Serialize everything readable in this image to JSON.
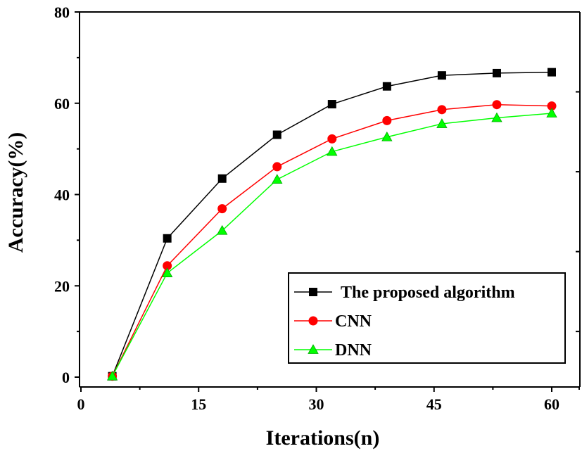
{
  "chart_data": {
    "type": "line",
    "title": "",
    "xlabel": "Iterations(n)",
    "ylabel": "Accuracy(%)",
    "xlim": [
      0,
      64
    ],
    "ylim": [
      0,
      80
    ],
    "xticks": [
      0,
      15,
      30,
      45,
      60
    ],
    "yticks": [
      0,
      20,
      40,
      60,
      80
    ],
    "xtick_labels": [
      "0",
      "15",
      "30",
      "45",
      "60"
    ],
    "ytick_labels": [
      "0",
      "20",
      "40",
      "60",
      "80"
    ],
    "grid": false,
    "legend_position": "bottom-right",
    "x": [
      4,
      11,
      18,
      25,
      32,
      39,
      46,
      53,
      60
    ],
    "series": [
      {
        "name": "The proposed algorithm",
        "color": "#000000",
        "marker": "square",
        "values": [
          0.2,
          30.4,
          43.5,
          53.1,
          59.8,
          63.7,
          66.1,
          66.6,
          66.8
        ]
      },
      {
        "name": "CNN",
        "color": "#ff0000",
        "marker": "circle",
        "values": [
          0.2,
          24.4,
          36.9,
          46.1,
          52.2,
          56.2,
          58.6,
          59.7,
          59.4
        ]
      },
      {
        "name": "DNN",
        "color": "#00ff00",
        "marker": "triangle",
        "values": [
          0.2,
          22.8,
          32.1,
          43.3,
          49.4,
          52.6,
          55.5,
          56.8,
          57.8
        ]
      }
    ]
  }
}
